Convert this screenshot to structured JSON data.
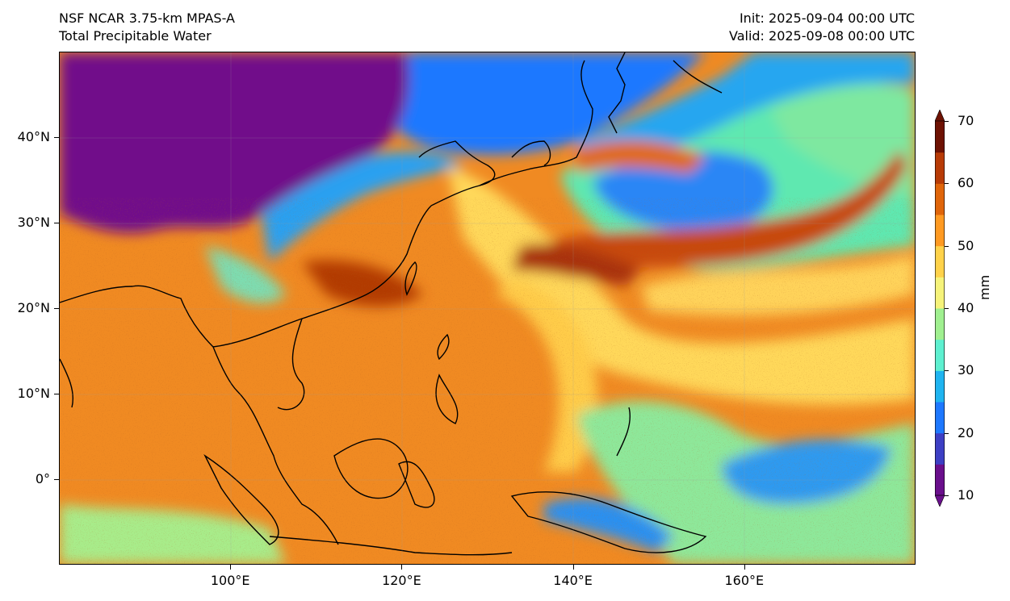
{
  "header": {
    "model": "NSF NCAR 3.75-km MPAS-A",
    "field": "Total Precipitable Water",
    "init": "Init: 2025-09-04 00:00 UTC",
    "valid": "Valid: 2025-09-08 00:00 UTC"
  },
  "map": {
    "lon_range": [
      80,
      180
    ],
    "lat_range": [
      -10,
      50
    ],
    "lat_ticks": [
      {
        "value": 40,
        "label": "40°N"
      },
      {
        "value": 30,
        "label": "30°N"
      },
      {
        "value": 20,
        "label": "20°N"
      },
      {
        "value": 10,
        "label": "10°N"
      },
      {
        "value": 0,
        "label": "0°"
      }
    ],
    "lon_ticks": [
      {
        "value": 100,
        "label": "100°E"
      },
      {
        "value": 120,
        "label": "120°E"
      },
      {
        "value": 140,
        "label": "140°E"
      },
      {
        "value": 160,
        "label": "160°E"
      }
    ]
  },
  "colorbar": {
    "unit": "mm",
    "min": 10,
    "max": 70,
    "tick_values": [
      10,
      20,
      30,
      40,
      50,
      60,
      70
    ],
    "ticks": [
      "10",
      "20",
      "30",
      "40",
      "50",
      "60",
      "70"
    ],
    "colors": [
      "#6a0f8c",
      "#3d3fc4",
      "#1e78ff",
      "#1fb4f0",
      "#5ef0d0",
      "#a0f090",
      "#f6f37a",
      "#ffd24a",
      "#ff9a22",
      "#e0650a",
      "#b83b06",
      "#6e1203"
    ]
  },
  "regions": {
    "dry_north": "#71108a",
    "tropical": "#f07f1e",
    "moist": "#ffc44a",
    "very_moist": "#b83f08",
    "mid": "#7ee8a0",
    "blue": "#2a86f5",
    "coast": "#000000"
  }
}
